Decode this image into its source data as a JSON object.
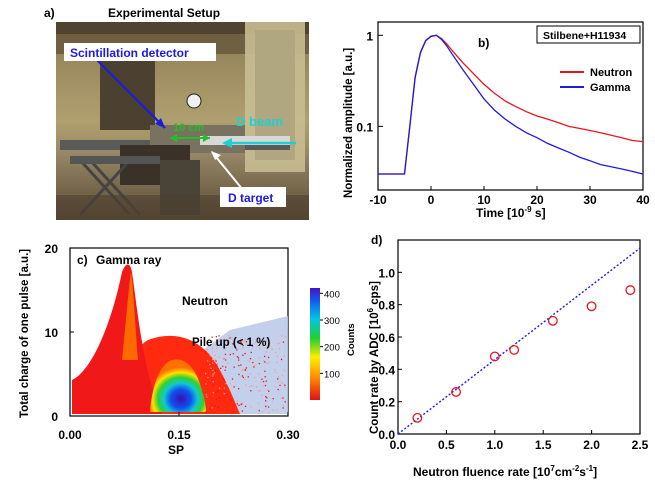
{
  "panel_a": {
    "letter": "a)",
    "title": "Experimental Setup",
    "labels": {
      "detector": "Scintillation detector",
      "distance": "10 cm",
      "beam": "D beam",
      "target": "D target"
    }
  },
  "chart_data": [
    {
      "id": "b",
      "type": "line",
      "letter": "b)",
      "legend_box": "Stilbene+H11934",
      "xlabel": "Time [10",
      "xlabel_sup": "-9",
      "xlabel_end": " s]",
      "ylabel": "Normalized amplitude [a.u.]",
      "xlim": [
        -10,
        40
      ],
      "ylim": [
        0.02,
        1.4
      ],
      "yscale": "log",
      "xticks": [
        -10,
        0,
        10,
        20,
        30,
        40
      ],
      "yticks": [
        {
          "v": 1,
          "label": "1"
        },
        {
          "v": 0.1,
          "label": "0.1"
        }
      ],
      "legend_position": "top-right",
      "series": [
        {
          "name": "Neutron",
          "color": "#e8141c",
          "x": [
            -10,
            -5,
            -4,
            -3,
            -2,
            -1,
            0,
            1,
            2,
            3,
            4,
            6,
            8,
            10,
            12,
            14,
            16,
            18,
            20,
            22,
            24,
            26,
            28,
            30,
            32,
            34,
            36,
            38,
            40
          ],
          "y": [
            0.03,
            0.03,
            0.1,
            0.35,
            0.65,
            0.88,
            0.98,
            1.0,
            0.92,
            0.8,
            0.68,
            0.5,
            0.38,
            0.29,
            0.23,
            0.19,
            0.165,
            0.145,
            0.13,
            0.12,
            0.11,
            0.1,
            0.095,
            0.09,
            0.085,
            0.08,
            0.075,
            0.07,
            0.068
          ]
        },
        {
          "name": "Gamma",
          "color": "#1c1ce0",
          "x": [
            -10,
            -5,
            -4,
            -3,
            -2,
            -1,
            0,
            1,
            2,
            3,
            4,
            6,
            8,
            10,
            12,
            14,
            16,
            18,
            20,
            22,
            24,
            26,
            28,
            30,
            32,
            34,
            36,
            38,
            40
          ],
          "y": [
            0.03,
            0.03,
            0.1,
            0.34,
            0.64,
            0.87,
            0.97,
            1.0,
            0.9,
            0.76,
            0.62,
            0.42,
            0.29,
            0.2,
            0.15,
            0.12,
            0.1,
            0.085,
            0.075,
            0.065,
            0.058,
            0.052,
            0.046,
            0.042,
            0.038,
            0.036,
            0.034,
            0.032,
            0.03
          ]
        }
      ]
    },
    {
      "id": "c",
      "type": "heatmap",
      "letter": "c)",
      "xlabel": "SP",
      "ylabel": "Total charge of one pulse [a.u.]",
      "xlim": [
        0.0,
        0.3
      ],
      "ylim": [
        0,
        20
      ],
      "xticks": [
        {
          "v": 0.0,
          "label": "0.00"
        },
        {
          "v": 0.15,
          "label": "0.15"
        },
        {
          "v": 0.3,
          "label": "0.30"
        }
      ],
      "yticks": [
        0,
        10,
        20
      ],
      "annotations": {
        "gamma": "Gamma ray",
        "neutron": "Neutron",
        "pileup": "Pile up (< 1 %)"
      },
      "colorbar": {
        "label": "Counts",
        "ticks": [
          100,
          200,
          300,
          400
        ],
        "max": 420
      }
    },
    {
      "id": "d",
      "type": "scatter",
      "letter": "d)",
      "xlabel": "Neutron fluence rate [10",
      "xlabel_sup1": "7",
      "xlabel_mid": "cm",
      "xlabel_sup2": "-2",
      "xlabel_mid2": "s",
      "xlabel_sup3": "-1",
      "xlabel_end": "]",
      "ylabel": "Count rate by ADC [10",
      "ylabel_sup": "6",
      "ylabel_end": " cps]",
      "xlim": [
        0,
        2.5
      ],
      "ylim": [
        0,
        1.2
      ],
      "xticks": [
        {
          "v": 0,
          "label": "0.0"
        },
        {
          "v": 0.5,
          "label": "0.5"
        },
        {
          "v": 1.0,
          "label": "1.0"
        },
        {
          "v": 1.5,
          "label": "1.5"
        },
        {
          "v": 2.0,
          "label": "2.0"
        },
        {
          "v": 2.5,
          "label": "2.5"
        }
      ],
      "yticks": [
        {
          "v": 0,
          "label": "0.0"
        },
        {
          "v": 0.2,
          "label": "0.2"
        },
        {
          "v": 0.4,
          "label": "0.4"
        },
        {
          "v": 0.6,
          "label": "0.6"
        },
        {
          "v": 0.8,
          "label": "0.8"
        },
        {
          "v": 1.0,
          "label": "1.0"
        }
      ],
      "points": {
        "x": [
          0.2,
          0.6,
          1.0,
          1.2,
          1.6,
          2.0,
          2.4
        ],
        "y": [
          0.1,
          0.26,
          0.48,
          0.52,
          0.7,
          0.79,
          0.89
        ],
        "color": "#e8141c"
      },
      "fit_line": {
        "x": [
          0,
          2.5
        ],
        "y": [
          0,
          1.15
        ],
        "color": "#1c1ce0"
      }
    }
  ]
}
